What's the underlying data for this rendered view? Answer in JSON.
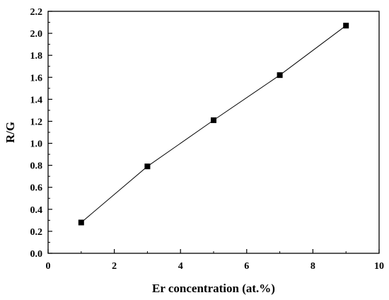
{
  "chart_data": {
    "type": "line",
    "title": "",
    "xlabel": "Er concentration (at.%)",
    "ylabel": "R/G",
    "xlim": [
      0,
      10
    ],
    "ylim": [
      0.0,
      2.2
    ],
    "x_ticks": [
      "0",
      "2",
      "4",
      "6",
      "8",
      "10"
    ],
    "y_ticks": [
      "0.0",
      "0.2",
      "0.4",
      "0.6",
      "0.8",
      "1.0",
      "1.2",
      "1.4",
      "1.6",
      "1.8",
      "2.0",
      "2.2"
    ],
    "grid": false,
    "marker": "square",
    "series": [
      {
        "x": [
          1,
          3,
          5,
          7,
          9
        ],
        "y": [
          0.28,
          0.79,
          1.21,
          1.62,
          2.07
        ]
      }
    ]
  }
}
